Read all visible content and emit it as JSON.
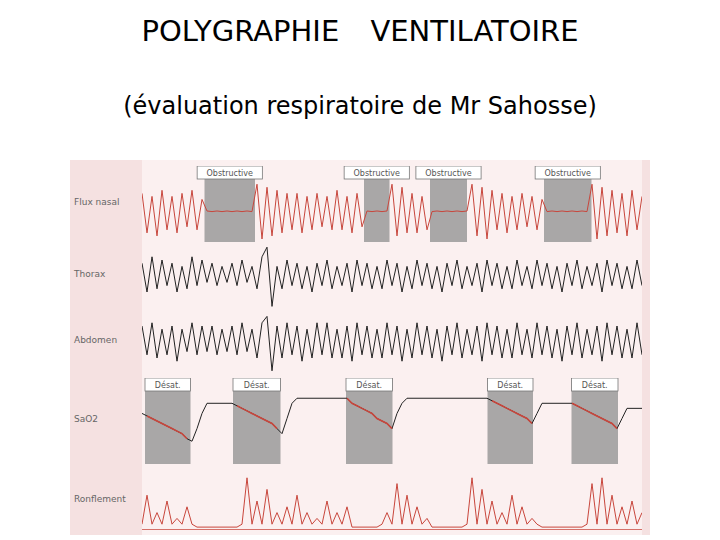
{
  "title": "POLYGRAPHIE VENTILATOIRE",
  "subtitle": "(évaluation respiratoire de Mr Sahosse)",
  "chart_data": [
    {
      "type": "line",
      "ylabel": "Flux nasal",
      "color": "#c8463c",
      "xlim": [
        0,
        100
      ],
      "ylim": [
        -1,
        1.5
      ],
      "tick_labels": false,
      "events": [
        {
          "label": "Obstructive",
          "start": 12.5,
          "end": 22.6
        },
        {
          "label": "Obstructive",
          "start": 44.4,
          "end": 49.5
        },
        {
          "label": "Obstructive",
          "start": 57.6,
          "end": 65
        },
        {
          "label": "Obstructive",
          "start": 80.4,
          "end": 89.9
        }
      ],
      "values": [
        0.6,
        -0.7,
        0.5,
        -0.8,
        0.7,
        -0.6,
        0.5,
        -0.7,
        0.6,
        -0.5,
        0.7,
        -0.6,
        0.4,
        0.02,
        0,
        0.02,
        0,
        0.02,
        0,
        0.02,
        0,
        0.02,
        0,
        0.9,
        -0.9,
        0.8,
        -0.8,
        0.7,
        -0.7,
        0.6,
        -0.6,
        0.6,
        -0.7,
        0.5,
        -0.6,
        0.6,
        -0.5,
        0.5,
        -0.6,
        0.7,
        -0.6,
        0.5,
        -0.7,
        0.6,
        -0.5,
        0.02,
        0,
        0.02,
        0,
        0.02,
        0.9,
        -0.8,
        0.8,
        -0.7,
        0.6,
        -0.7,
        0.5,
        -0.6,
        0,
        0.02,
        0,
        0.02,
        0,
        0.02,
        0,
        0.02,
        0.9,
        -0.8,
        0.8,
        -0.9,
        0.7,
        -0.6,
        0.6,
        -0.7,
        0.5,
        -0.6,
        0.6,
        -0.5,
        0.5,
        -0.6,
        0.4,
        0,
        0.02,
        0,
        0.02,
        0,
        0.02,
        0,
        0.02,
        0,
        0.9,
        -0.9,
        0.8,
        -0.8,
        0.7,
        -0.7,
        0.6,
        -0.8,
        0.7,
        -0.6,
        0.5
      ]
    },
    {
      "type": "line",
      "ylabel": "Thorax",
      "color": "#222222",
      "xlim": [
        0,
        100
      ],
      "ylim": [
        -1,
        1
      ],
      "tick_labels": false,
      "values": [
        0.4,
        -0.5,
        0.6,
        -0.4,
        0.5,
        -0.3,
        0.4,
        -0.5,
        0.3,
        -0.4,
        0.6,
        -0.3,
        0.5,
        -0.2,
        0.4,
        -0.3,
        0.3,
        -0.2,
        0.4,
        -0.3,
        0.5,
        -0.2,
        0.3,
        -0.4,
        0.6,
        0.9,
        -0.95,
        0.3,
        -0.4,
        0.5,
        -0.3,
        0.4,
        -0.4,
        0.3,
        -0.5,
        0.4,
        -0.3,
        0.5,
        -0.4,
        0.3,
        -0.3,
        0.4,
        -0.5,
        0.5,
        -0.3,
        0.4,
        -0.4,
        0.3,
        -0.4,
        0.5,
        -0.3,
        0.4,
        -0.5,
        0.3,
        -0.4,
        0.5,
        -0.3,
        0.4,
        -0.4,
        0.3,
        -0.5,
        0.4,
        -0.3,
        0.5,
        -0.4,
        0.3,
        -0.3,
        0.4,
        -0.5,
        0.5,
        -0.3,
        0.4,
        -0.4,
        0.3,
        -0.4,
        0.5,
        -0.3,
        0.3,
        -0.4,
        0.5,
        -0.3,
        0.4,
        -0.4,
        0.3,
        -0.5,
        0.4,
        -0.3,
        0.5,
        -0.4,
        0.3,
        -0.3,
        0.4,
        -0.5,
        0.5,
        -0.3,
        0.4,
        -0.4,
        0.3,
        -0.4,
        0.5,
        -0.3
      ]
    },
    {
      "type": "line",
      "ylabel": "Abdomen",
      "color": "#222222",
      "xlim": [
        0,
        100
      ],
      "ylim": [
        -1,
        1
      ],
      "tick_labels": false,
      "values": [
        0.5,
        -0.4,
        0.6,
        -0.5,
        0.4,
        -0.4,
        0.5,
        -0.6,
        0.4,
        -0.3,
        0.6,
        -0.4,
        0.5,
        -0.3,
        0.5,
        -0.4,
        0.4,
        -0.3,
        0.5,
        -0.4,
        0.6,
        -0.3,
        0.4,
        -0.5,
        0.6,
        0.8,
        -0.9,
        0.5,
        -0.5,
        0.6,
        -0.4,
        0.5,
        -0.6,
        0.4,
        -0.5,
        0.6,
        -0.4,
        0.6,
        -0.5,
        0.4,
        -0.5,
        0.5,
        -0.6,
        0.6,
        -0.4,
        0.5,
        -0.5,
        0.4,
        -0.5,
        0.6,
        -0.4,
        0.5,
        -0.6,
        0.4,
        -0.5,
        0.6,
        -0.4,
        0.5,
        -0.5,
        0.4,
        -0.6,
        0.5,
        -0.4,
        0.6,
        -0.5,
        0.4,
        -0.4,
        0.5,
        -0.6,
        0.6,
        -0.4,
        0.5,
        -0.5,
        0.4,
        -0.5,
        0.6,
        -0.4,
        0.4,
        -0.5,
        0.6,
        -0.4,
        0.5,
        -0.5,
        0.4,
        -0.6,
        0.5,
        -0.4,
        0.6,
        -0.5,
        0.4,
        -0.4,
        0.5,
        -0.6,
        0.6,
        -0.4,
        0.5,
        -0.5,
        0.4,
        -0.5,
        0.6,
        -0.4
      ]
    },
    {
      "type": "line",
      "ylabel": "SaO2",
      "color": "#222222",
      "xlim": [
        0,
        100
      ],
      "ylim": [
        84,
        101
      ],
      "tick_labels": false,
      "events": [
        {
          "label": "Désat.",
          "start": 0.6,
          "end": 9.7,
          "color": "#c8463c"
        },
        {
          "label": "Désat.",
          "start": 18.2,
          "end": 27.7,
          "color": "#c8463c"
        },
        {
          "label": "Désat.",
          "start": 40.8,
          "end": 50.1,
          "color": "#c8463c"
        },
        {
          "label": "Désat.",
          "start": 69.1,
          "end": 78.2,
          "color": "#c8463c"
        },
        {
          "label": "Désat.",
          "start": 85.9,
          "end": 95.2,
          "color": "#c8463c"
        }
      ],
      "values": [
        94,
        93.5,
        93,
        92.5,
        92,
        91.5,
        91,
        90.5,
        90,
        89,
        88.5,
        91,
        94,
        96,
        96,
        96,
        96,
        96,
        96,
        95.5,
        95,
        94.5,
        94,
        93.5,
        93,
        92.5,
        92,
        91,
        90,
        93,
        96,
        97,
        97,
        97,
        97,
        97,
        97,
        97,
        97,
        97,
        97,
        97,
        96,
        95.5,
        95,
        94.5,
        94,
        93,
        92.5,
        92,
        91,
        94,
        96,
        97,
        97,
        97,
        97,
        97,
        97,
        97,
        97,
        97,
        97,
        97,
        97,
        97,
        97,
        97,
        97,
        97,
        96.5,
        96,
        95.5,
        95,
        94.5,
        94,
        93.5,
        93,
        92,
        94,
        96,
        96,
        96,
        96,
        96,
        96,
        96,
        95.5,
        95,
        94.5,
        94,
        93.5,
        93,
        92.5,
        92,
        91,
        93,
        95,
        95,
        95,
        95
      ]
    },
    {
      "type": "line",
      "ylabel": "Ronflement",
      "color": "#c8463c",
      "xlim": [
        0,
        100
      ],
      "ylim": [
        0,
        1
      ],
      "tick_labels": false,
      "values": [
        0.1,
        0.6,
        0.1,
        0.3,
        0.1,
        0.5,
        0.1,
        0.2,
        0.1,
        0.4,
        0.1,
        0.05,
        0.05,
        0.05,
        0.05,
        0.05,
        0.05,
        0.05,
        0.05,
        0.05,
        0.1,
        0.9,
        0.1,
        0.5,
        0.1,
        0.7,
        0.1,
        0.3,
        0.1,
        0.4,
        0.1,
        0.6,
        0.1,
        0.3,
        0.1,
        0.2,
        0.1,
        0.5,
        0.1,
        0.3,
        0.1,
        0.4,
        0.05,
        0.05,
        0.05,
        0.05,
        0.05,
        0.05,
        0.1,
        0.3,
        0.1,
        0.8,
        0.1,
        0.6,
        0.1,
        0.4,
        0.1,
        0.2,
        0.05,
        0.05,
        0.05,
        0.05,
        0.05,
        0.05,
        0.05,
        0.1,
        0.9,
        0.1,
        0.7,
        0.1,
        0.5,
        0.1,
        0.3,
        0.1,
        0.6,
        0.1,
        0.4,
        0.1,
        0.2,
        0.1,
        0.05,
        0.05,
        0.05,
        0.05,
        0.05,
        0.05,
        0.05,
        0.05,
        0.05,
        0.1,
        0.8,
        0.1,
        0.9,
        0.1,
        0.6,
        0.1,
        0.4,
        0.1,
        0.5,
        0.1,
        0.3
      ]
    }
  ]
}
